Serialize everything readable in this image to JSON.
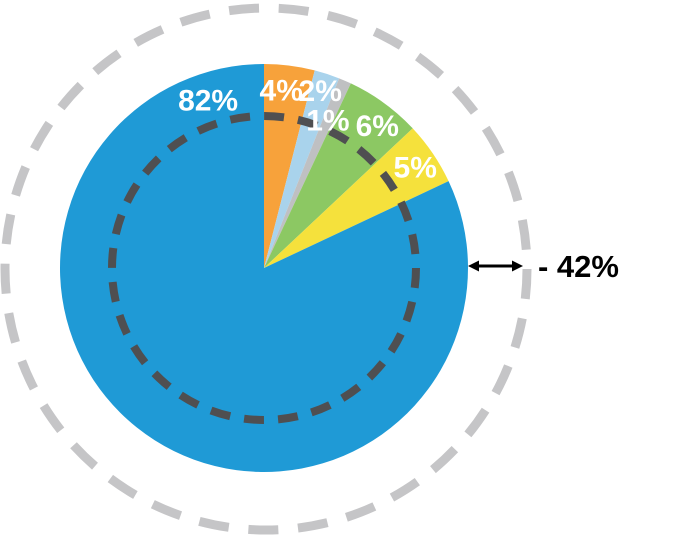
{
  "background_color": "#FFFFFF",
  "chart_data": {
    "type": "pie",
    "title": "",
    "start_angle_deg": 0,
    "direction": "clockwise",
    "label_color": "#FFFFFF",
    "slices": [
      {
        "label": "4%",
        "value": 4,
        "color": "#F7A23B",
        "label_angle_deg": 5.5,
        "label_radius": 179
      },
      {
        "label": "2%",
        "value": 2,
        "color": "#A9D3EC",
        "label_angle_deg": 17.6,
        "label_radius": 186
      },
      {
        "label": "1%",
        "value": 1,
        "color": "#BFC0C2",
        "label_angle_deg": 23.4,
        "label_radius": 161
      },
      {
        "label": "6%",
        "value": 6,
        "color": "#8CC863",
        "label_angle_deg": 38.5,
        "label_radius": 182
      },
      {
        "label": "5%",
        "value": 5,
        "color": "#F5E13C",
        "label_angle_deg": 56.2,
        "label_radius": 182
      },
      {
        "label": "82%",
        "value": 82,
        "color": "#1F9AD6",
        "label_angle_deg": 341.6,
        "label_radius": 177
      }
    ],
    "reference_circles": [
      {
        "name": "outer-dashed-circle",
        "style": "dashed",
        "color": "#C5C5C7",
        "radius": 261,
        "stroke_width": 9,
        "dash": 30,
        "gap": 19.7
      },
      {
        "name": "inner-dashed-circle",
        "style": "dashed",
        "color": "#4F4F51",
        "radius": 152,
        "stroke_width": 8,
        "dash": 20,
        "gap": 14.1
      }
    ],
    "annotation": {
      "text": "- 42%",
      "color": "#000000",
      "arrow": "double-headed-horizontal"
    }
  }
}
